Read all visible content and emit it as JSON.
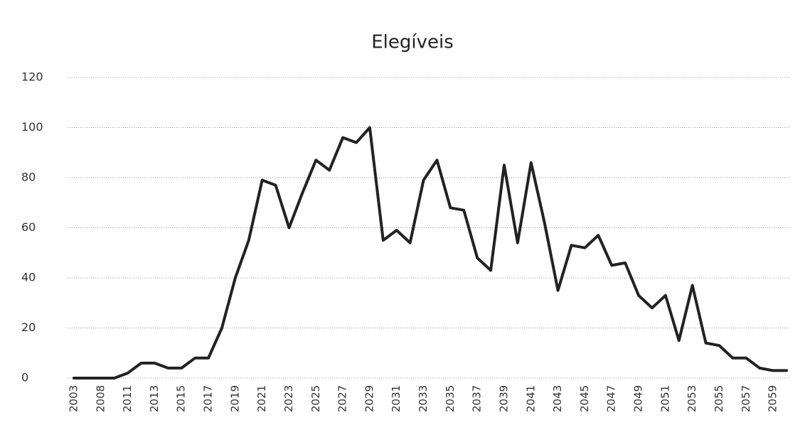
{
  "chart_data": {
    "type": "line",
    "title": "Elegíveis",
    "categories": [
      "2003",
      null,
      "2008",
      null,
      "2011",
      null,
      "2013",
      null,
      "2015",
      null,
      "2017",
      null,
      "2019",
      null,
      "2021",
      null,
      "2023",
      null,
      "2025",
      null,
      "2027",
      null,
      "2029",
      null,
      "2031",
      null,
      "2033",
      null,
      "2035",
      null,
      "2037",
      null,
      "2039",
      null,
      "2041",
      null,
      "2043",
      null,
      "2045",
      null,
      "2047",
      null,
      "2049",
      null,
      "2051",
      null,
      "2053",
      null,
      "2055",
      null,
      "2057",
      null,
      "2059",
      null
    ],
    "series": [
      {
        "name": "Elegíveis",
        "color": "#222222",
        "values": [
          0,
          0,
          0,
          0,
          2,
          6,
          6,
          4,
          4,
          8,
          8,
          20,
          40,
          55,
          79,
          77,
          60,
          74,
          87,
          83,
          96,
          94,
          100,
          55,
          59,
          54,
          79,
          87,
          68,
          67,
          48,
          43,
          85,
          54,
          86,
          62,
          35,
          53,
          52,
          57,
          45,
          46,
          33,
          28,
          33,
          15,
          37,
          14,
          13,
          8,
          8,
          4,
          3,
          3
        ]
      }
    ],
    "ylim": [
      0,
      120
    ],
    "yticks": [
      0,
      20,
      40,
      60,
      80,
      100,
      120
    ],
    "grid": true
  }
}
